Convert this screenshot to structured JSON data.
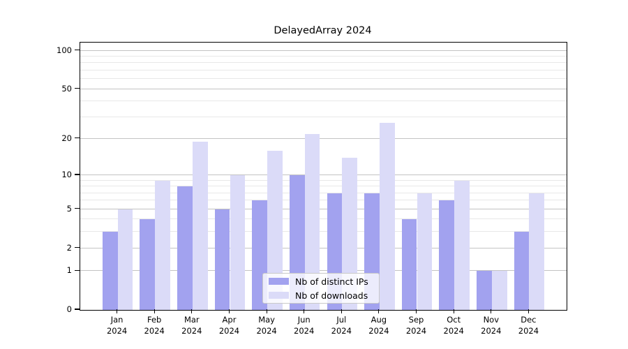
{
  "chart_data": {
    "type": "bar",
    "title": "DelayedArray 2024",
    "categories": [
      "Jan",
      "Feb",
      "Mar",
      "Apr",
      "May",
      "Jun",
      "Jul",
      "Aug",
      "Sep",
      "Oct",
      "Nov",
      "Dec"
    ],
    "year": "2024",
    "series": [
      {
        "name": "Nb of distinct IPs",
        "color": "#a2a2ef",
        "values": [
          3,
          4,
          8,
          5,
          6,
          10,
          7,
          7,
          4,
          6,
          1,
          3
        ]
      },
      {
        "name": "Nb of downloads",
        "color": "#dbdbf8",
        "values": [
          5,
          9,
          19,
          10,
          16,
          22,
          14,
          27,
          7,
          9,
          1,
          7
        ]
      }
    ],
    "y_axis": {
      "scale": "log1p",
      "major_ticks": [
        0,
        1,
        2,
        5,
        10,
        20,
        50,
        100
      ],
      "minor_gridlines": [
        3,
        4,
        6,
        7,
        8,
        9,
        30,
        40,
        60,
        70,
        80,
        90
      ],
      "max_value": 115
    },
    "grid": "on",
    "legend_position": "bottom-center",
    "colors": {
      "major_grid": "#c3c3c3",
      "minor_grid": "#e8e8e8",
      "axis": "#000000",
      "background": "#ffffff"
    }
  }
}
